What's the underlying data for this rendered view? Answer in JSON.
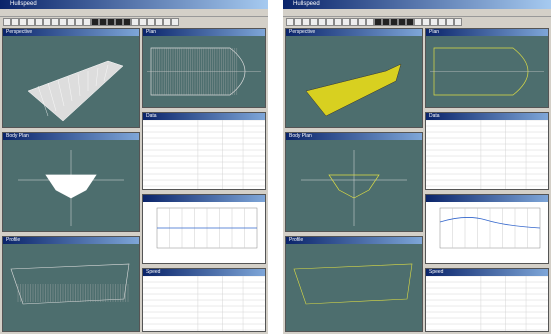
{
  "windows": [
    {
      "title": "Hullspeed",
      "panes": [
        "Perspective",
        "Plan",
        "Body Plan",
        "Data",
        "Profile",
        "Speed"
      ]
    },
    {
      "title": "Hullspeed",
      "panes": [
        "Perspective",
        "Plan",
        "Body Plan",
        "Data",
        "Profile",
        "Speed"
      ]
    }
  ]
}
